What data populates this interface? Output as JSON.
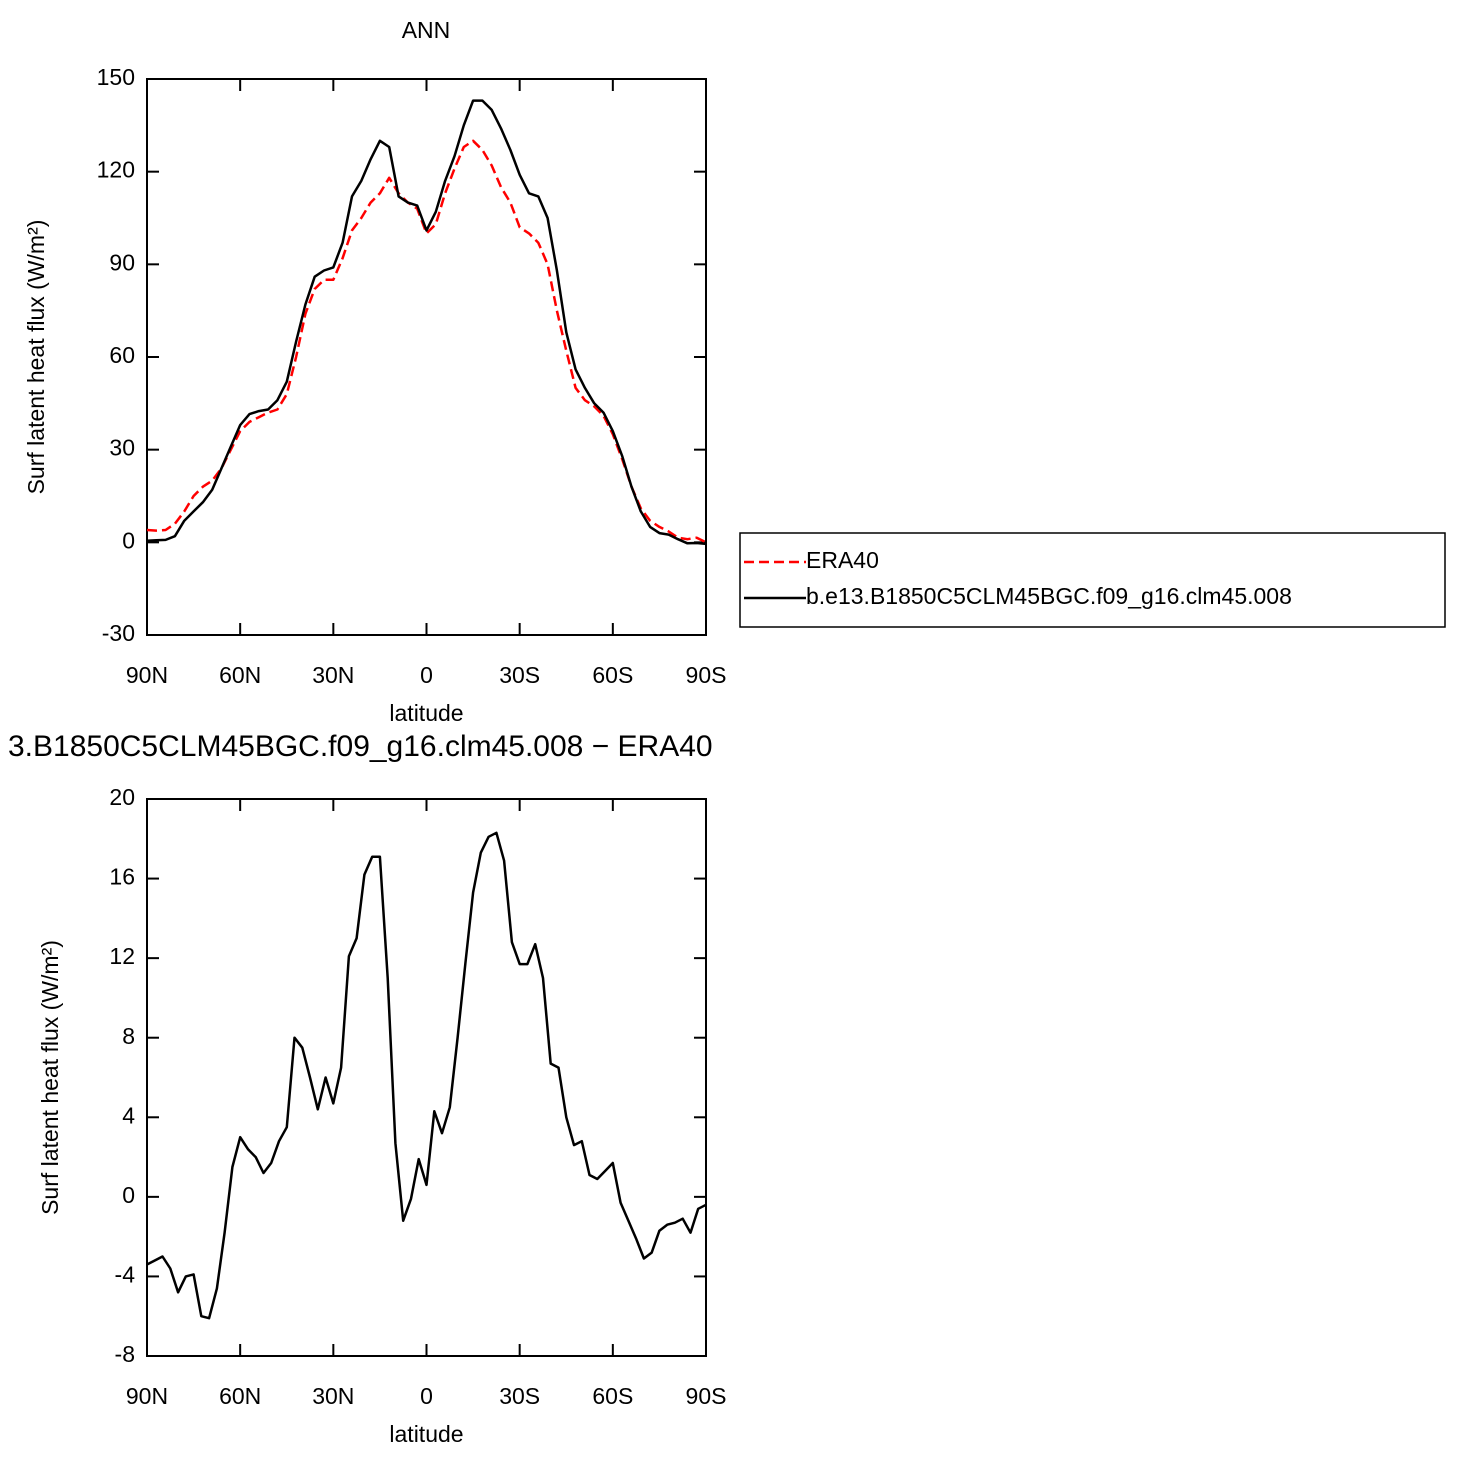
{
  "chart_data": [
    {
      "type": "line",
      "title": "ANN",
      "xlabel": "latitude",
      "ylabel": "Surf latent heat flux (W/m²)",
      "x": [
        90,
        87,
        84,
        81,
        78,
        75,
        72,
        69,
        66,
        63,
        60,
        57,
        54,
        51,
        48,
        45,
        42,
        39,
        36,
        33,
        30,
        27,
        24,
        21,
        18,
        15,
        12,
        9,
        6,
        3,
        0,
        -3,
        -6,
        -9,
        -12,
        -15,
        -18,
        -21,
        -24,
        -27,
        -30,
        -33,
        -36,
        -39,
        -42,
        -45,
        -48,
        -51,
        -54,
        -57,
        -60,
        -63,
        -66,
        -69,
        -72,
        -75,
        -78,
        -81,
        -84,
        -87,
        -90
      ],
      "series": [
        {
          "name": "ERA40",
          "color": "#ff0000",
          "dashed": true,
          "values": [
            4,
            3.8,
            4,
            6,
            10,
            15,
            18,
            20,
            24,
            30,
            36,
            39,
            40.5,
            42,
            43,
            48,
            60,
            74,
            82,
            85,
            85,
            92,
            101,
            105,
            110,
            113,
            118,
            113,
            110,
            108,
            100,
            103,
            113,
            121,
            128,
            130,
            127,
            122,
            115,
            110,
            102,
            100,
            97,
            90,
            75,
            62,
            50,
            46,
            44,
            41,
            35,
            27,
            18,
            11,
            7,
            5,
            3.5,
            1.5,
            1,
            1.5,
            0
          ]
        },
        {
          "name": "b.e13.B1850C5CLM45BGC.f09_g16.clm45.008",
          "color": "#000000",
          "dashed": false,
          "values": [
            0.5,
            0.7,
            0.8,
            2,
            7,
            10,
            13,
            17,
            24,
            31,
            38,
            41.5,
            42.5,
            43,
            46,
            52,
            65,
            77,
            86,
            88,
            89,
            97,
            112,
            117,
            124,
            130,
            128,
            112,
            110,
            109,
            101,
            107,
            117,
            125,
            135,
            143,
            143,
            140,
            134,
            127,
            119,
            113,
            112,
            105,
            88,
            68,
            56,
            50,
            45,
            42,
            36,
            28,
            18,
            10,
            5,
            3,
            2.5,
            1,
            -0.3,
            -0.2,
            -0.5
          ]
        }
      ],
      "xlim": [
        90,
        -90
      ],
      "xticks": [
        {
          "value": 90,
          "label": "90N"
        },
        {
          "value": 60,
          "label": "60N"
        },
        {
          "value": 30,
          "label": "30N"
        },
        0,
        {
          "value": -30,
          "label": "30S"
        },
        {
          "value": -60,
          "label": "60S"
        },
        {
          "value": -90,
          "label": "90S"
        }
      ],
      "ylim": [
        -30,
        150
      ],
      "yticks": [
        -30,
        0,
        30,
        60,
        90,
        120,
        150
      ],
      "legend": "right"
    },
    {
      "type": "line",
      "title": "3.B1850C5CLM45BGC.f09_g16.clm45.008 − ERA40",
      "xlabel": "latitude",
      "ylabel": "Surf latent heat flux (W/m²)",
      "x": [
        90,
        87.5,
        85,
        82.5,
        80,
        77.5,
        75,
        72.5,
        70,
        67.5,
        65,
        62.5,
        60,
        57.5,
        55,
        52.5,
        50,
        47.5,
        45,
        42.5,
        40,
        37.5,
        35,
        32.5,
        30,
        27.5,
        25,
        22.5,
        20,
        17.5,
        15,
        12.5,
        10,
        7.5,
        5,
        2.5,
        0,
        -2.5,
        -5,
        -7.5,
        -10,
        -12.5,
        -15,
        -17.5,
        -20,
        -22.5,
        -25,
        -27.5,
        -30,
        -32.5,
        -35,
        -37.5,
        -40,
        -42.5,
        -45,
        -47.5,
        -50,
        -52.5,
        -55,
        -57.5,
        -60,
        -62.5,
        -65,
        -67.5,
        -70,
        -72.5,
        -75,
        -77.5,
        -80,
        -82.5,
        -85,
        -87.5,
        -90
      ],
      "series": [
        {
          "color": "#000000",
          "dashed": false,
          "values": [
            -3.4,
            -3.2,
            -3,
            -3.6,
            -4.8,
            -4,
            -3.9,
            -6,
            -6.1,
            -4.6,
            -1.8,
            1.5,
            3,
            2.4,
            2,
            1.2,
            1.7,
            2.8,
            3.5,
            8,
            7.5,
            6,
            4.4,
            6,
            4.7,
            6.5,
            12.1,
            13,
            16.2,
            17.1,
            17.1,
            11,
            2.7,
            -1.2,
            -0.1,
            1.9,
            0.6,
            4.3,
            3.2,
            4.5,
            8,
            11.7,
            15.3,
            17.3,
            18.1,
            18.3,
            16.9,
            12.8,
            11.7,
            11.7,
            12.7,
            11,
            6.7,
            6.5,
            4,
            2.6,
            2.8,
            1.1,
            0.9,
            1.3,
            1.7,
            -0.3,
            -1.2,
            -2.1,
            -3.1,
            -2.8,
            -1.7,
            -1.4,
            -1.3,
            -1.1,
            -1.8,
            -0.6,
            -0.4
          ]
        }
      ],
      "xlim": [
        90,
        -90
      ],
      "xticks": [
        {
          "value": 90,
          "label": "90N"
        },
        {
          "value": 60,
          "label": "60N"
        },
        {
          "value": 30,
          "label": "30N"
        },
        0,
        {
          "value": -30,
          "label": "30S"
        },
        {
          "value": -60,
          "label": "60S"
        },
        {
          "value": -90,
          "label": "90S"
        }
      ],
      "ylim": [
        -8,
        20
      ],
      "yticks": [
        -8,
        -4,
        0,
        4,
        8,
        12,
        16,
        20
      ]
    }
  ]
}
